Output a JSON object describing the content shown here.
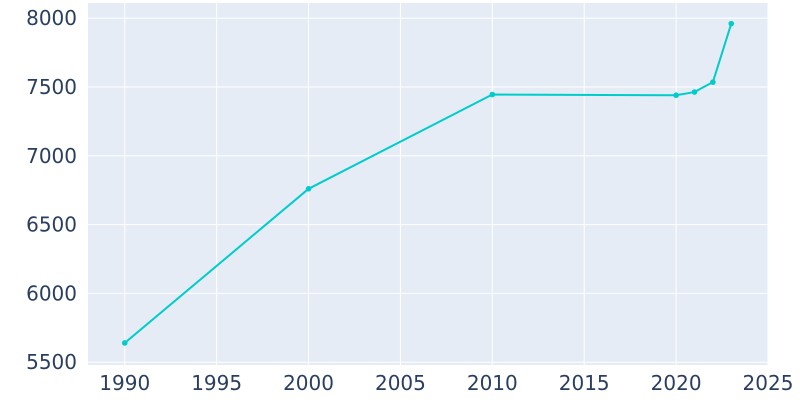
{
  "chart_data": {
    "type": "line",
    "title": "",
    "xlabel": "",
    "ylabel": "",
    "x": [
      1990,
      2000,
      2010,
      2020,
      2021,
      2022,
      2023
    ],
    "series": [
      {
        "values": [
          5640,
          6760,
          7445,
          7440,
          7463,
          7535,
          7960
        ]
      }
    ],
    "xlim": [
      1988,
      2025
    ],
    "ylim": [
      5480,
      8110
    ],
    "xticks": [
      1990,
      1995,
      2000,
      2005,
      2010,
      2015,
      2020,
      2025
    ],
    "yticks": [
      5500,
      6000,
      6500,
      7000,
      7500,
      8000
    ],
    "grid": true,
    "colors": {
      "line": "#00cccc",
      "plot_bg": "#e5ecf6",
      "grid": "#ffffff",
      "text": "#2a3f5f"
    }
  }
}
